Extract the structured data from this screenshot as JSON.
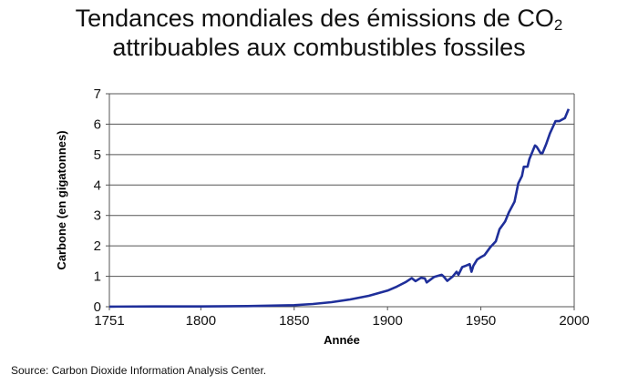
{
  "title": {
    "line1": "Tendances mondiales des émissions de CO",
    "line1_subscript": "2",
    "line2": "attribuables aux combustibles fossiles"
  },
  "source": "Source: Carbon Dioxide Information Analysis Center.",
  "chart_data": {
    "type": "line",
    "title": "Tendances mondiales des émissions de CO2 attribuables aux combustibles fossiles",
    "xlabel": "Année",
    "ylabel": "Carbone (en gigatonnes)",
    "xlim": [
      1751,
      2000
    ],
    "ylim": [
      0,
      7
    ],
    "xticks": [
      1751,
      1800,
      1850,
      1900,
      1950,
      2000
    ],
    "yticks": [
      0,
      1,
      2,
      3,
      4,
      5,
      6,
      7
    ],
    "grid": true,
    "line_color": "#1f2f9a",
    "series": [
      {
        "x": [
          1751,
          1775,
          1800,
          1825,
          1850,
          1860,
          1870,
          1880,
          1890,
          1900,
          1905,
          1910,
          1913,
          1915,
          1918,
          1920,
          1921,
          1925,
          1929,
          1930,
          1932,
          1935,
          1937,
          1938,
          1940,
          1942,
          1944,
          1945,
          1946,
          1948,
          1950,
          1952,
          1955,
          1958,
          1960,
          1963,
          1965,
          1968,
          1970,
          1972,
          1973,
          1975,
          1976,
          1979,
          1980,
          1982,
          1983,
          1985,
          1987,
          1990,
          1992,
          1995,
          1997
        ],
        "y": [
          0.003,
          0.01,
          0.01,
          0.02,
          0.05,
          0.09,
          0.15,
          0.24,
          0.36,
          0.53,
          0.66,
          0.82,
          0.94,
          0.84,
          0.95,
          0.93,
          0.8,
          0.98,
          1.05,
          1.0,
          0.85,
          1.0,
          1.15,
          1.05,
          1.3,
          1.35,
          1.4,
          1.15,
          1.35,
          1.55,
          1.63,
          1.7,
          1.95,
          2.15,
          2.55,
          2.8,
          3.1,
          3.45,
          4.05,
          4.3,
          4.6,
          4.6,
          4.85,
          5.3,
          5.25,
          5.05,
          5.05,
          5.35,
          5.7,
          6.1,
          6.1,
          6.2,
          6.5
        ]
      }
    ]
  }
}
